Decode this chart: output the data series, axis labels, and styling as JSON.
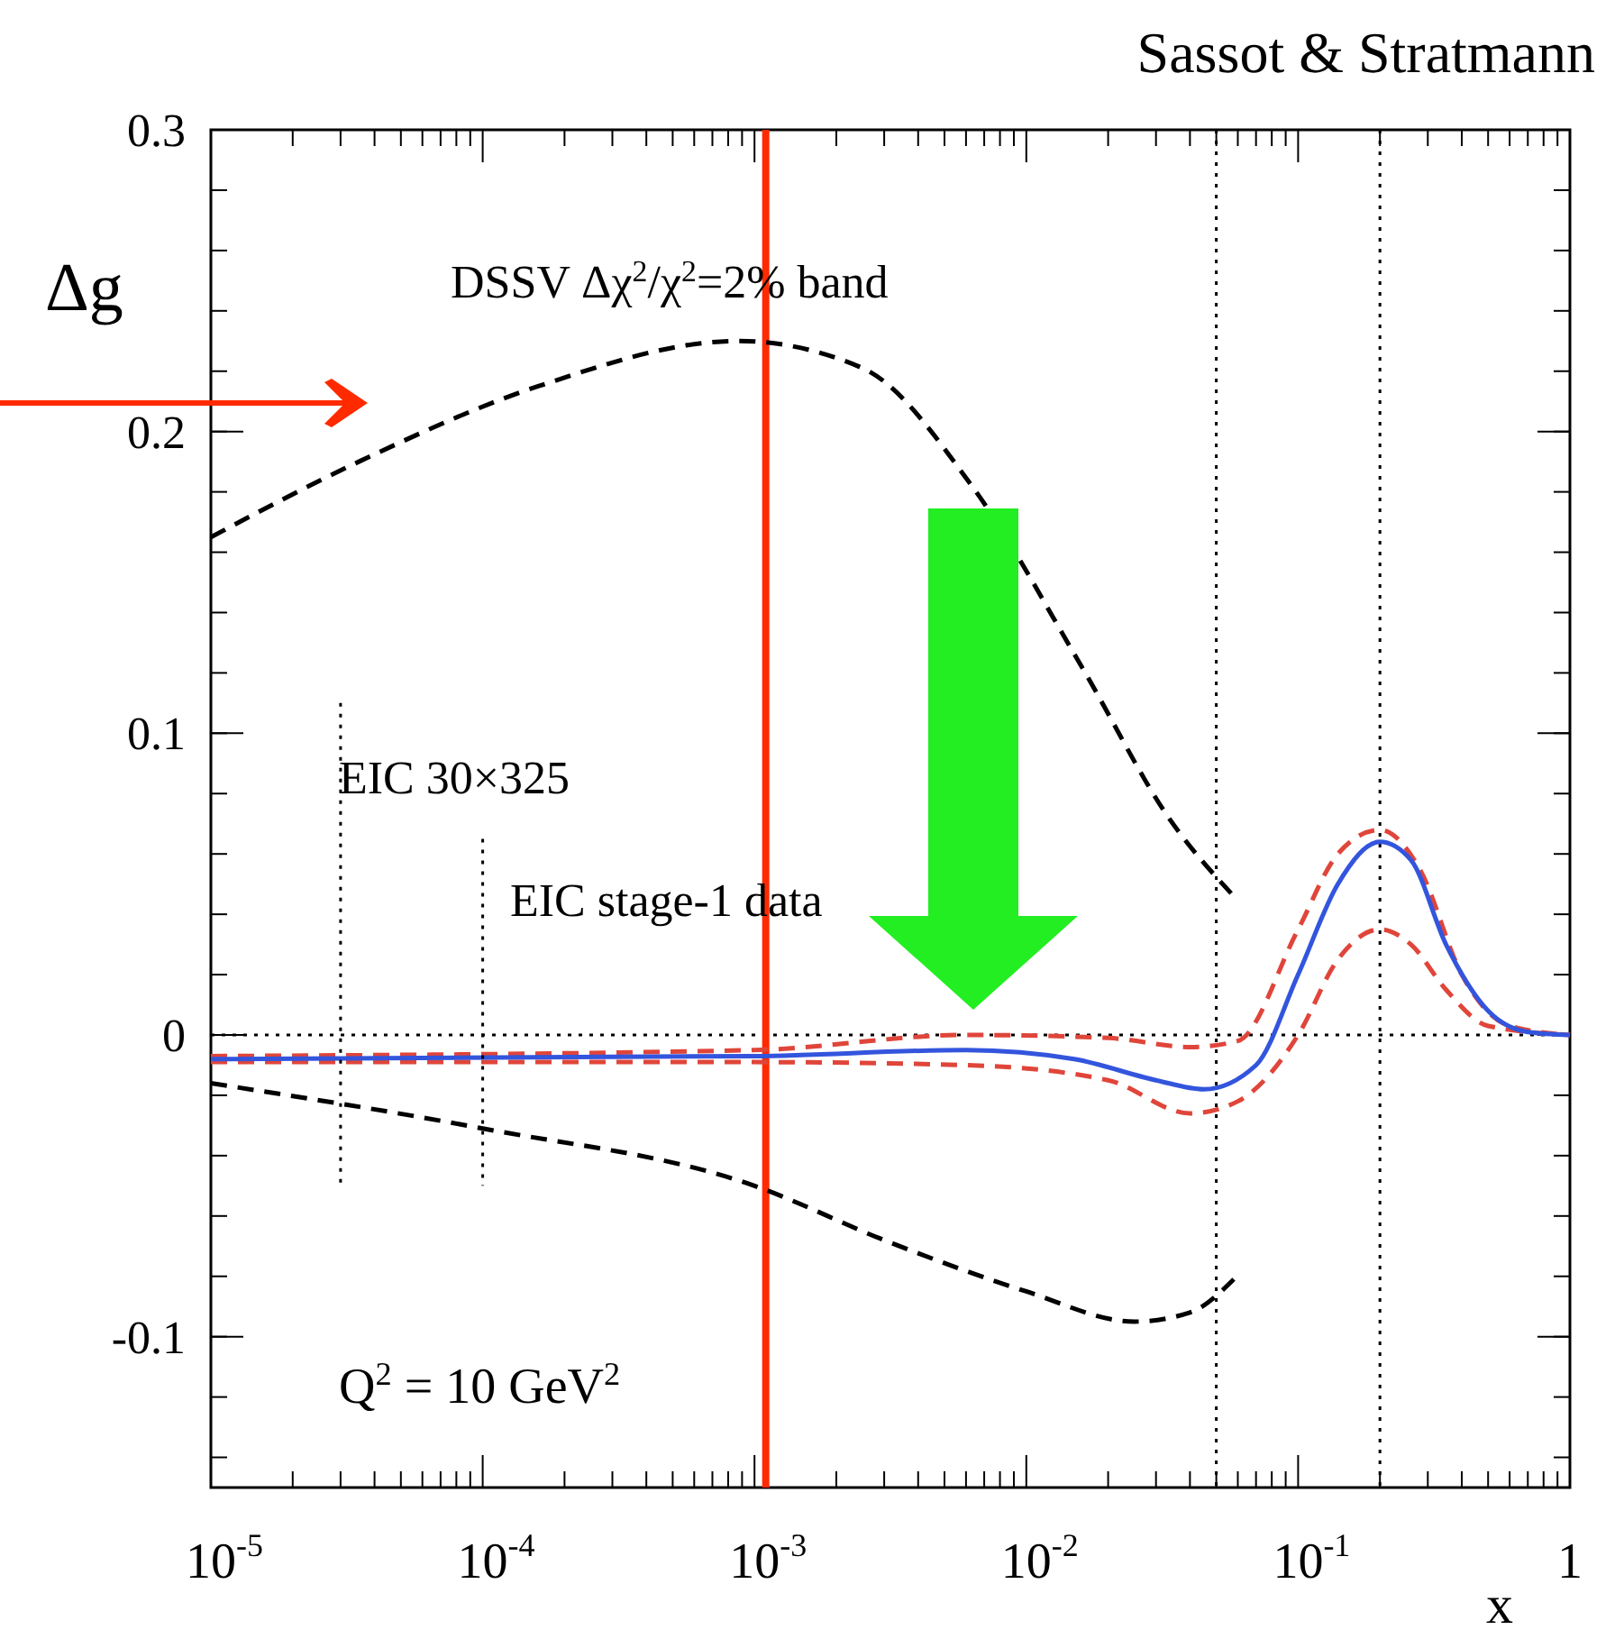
{
  "chart_data": {
    "type": "line",
    "xlabel": "x",
    "ylabel": "Δg",
    "log": "x",
    "xlim": [
      1e-05,
      1
    ],
    "ylim": [
      -0.15,
      0.3
    ],
    "xticks": [
      {
        "value": 1e-05,
        "label": "10$^{-5}$"
      },
      {
        "value": 0.0001,
        "label": "10$^{-4}$"
      },
      {
        "value": 0.001,
        "label": "10$^{-3}$"
      },
      {
        "value": 0.01,
        "label": "10$^{-2}$"
      },
      {
        "value": 0.1,
        "label": "10$^{-1}$"
      },
      1
    ],
    "yticks": [
      -0.1,
      0,
      0.1,
      0.2,
      0.3
    ],
    "series": [
      {
        "color": "#000000",
        "line_style": "dashed",
        "x": [
          1e-05,
          3.5e-05,
          0.00016,
          0.00087,
          0.0025,
          0.0063,
          0.016,
          0.034,
          0.058
        ],
        "values": [
          0.165,
          0.19,
          0.215,
          0.23,
          0.221,
          0.182,
          0.122,
          0.071,
          0.046
        ]
      },
      {
        "color": "#000000",
        "line_style": "dashed",
        "x": [
          1e-05,
          0.0001,
          0.001,
          0.003,
          0.01,
          0.025,
          0.04,
          0.058
        ],
        "values": [
          -0.016,
          -0.031,
          -0.05,
          -0.068,
          -0.085,
          -0.095,
          -0.092,
          -0.081
        ]
      },
      {
        "color": "#e0453a",
        "line_style": "dashed",
        "x": [
          1e-05,
          0.001,
          0.006,
          0.02,
          0.04,
          0.06,
          0.1,
          0.14,
          0.2,
          0.28,
          0.4,
          0.6,
          1
        ],
        "values": [
          -0.007,
          -0.005,
          0,
          -0.001,
          -0.004,
          -0.002,
          0.035,
          0.06,
          0.068,
          0.055,
          0.02,
          0.003,
          0
        ]
      },
      {
        "color": "#e0453a",
        "line_style": "dashed",
        "x": [
          1e-05,
          0.001,
          0.006,
          0.02,
          0.04,
          0.06,
          0.1,
          0.14,
          0.2,
          0.26,
          0.35,
          0.5,
          1
        ],
        "values": [
          -0.009,
          -0.009,
          -0.01,
          -0.015,
          -0.026,
          -0.022,
          0,
          0.025,
          0.035,
          0.03,
          0.015,
          0.003,
          0
        ]
      },
      {
        "color": "#3355dd",
        "line_style": "solid",
        "x": [
          1e-05,
          0.001,
          0.006,
          0.015,
          0.03,
          0.045,
          0.07,
          0.1,
          0.14,
          0.2,
          0.26,
          0.35,
          0.5,
          0.7,
          1
        ],
        "values": [
          -0.008,
          -0.007,
          -0.005,
          -0.008,
          -0.015,
          -0.018,
          -0.01,
          0.02,
          0.05,
          0.064,
          0.058,
          0.03,
          0.008,
          0.001,
          0
        ]
      },
      {
        "color": "#000000",
        "line_style": "dotted",
        "x": [
          3e-05,
          3e-05
        ],
        "values": [
          0.11,
          -0.05
        ]
      },
      {
        "color": "#000000",
        "line_style": "dotted",
        "x": [
          0.0001,
          0.0001
        ],
        "values": [
          0.065,
          -0.05
        ]
      }
    ],
    "ref_lines": [
      {
        "axis": "y",
        "value": 0,
        "color": "#000000",
        "line_style": "dotted"
      },
      {
        "axis": "x",
        "value": 0.05,
        "color": "#000000",
        "line_style": "dotted"
      },
      {
        "axis": "x",
        "value": 0.2,
        "color": "#000000",
        "line_style": "dotted"
      },
      {
        "axis": "x",
        "value": 0.0011,
        "color": "#ff2a00",
        "line_style": "solid"
      }
    ],
    "annotations": [
      "Sassot & Stratmann",
      "DSSV Δχ$^{2}$/χ$^{2}$=2% band",
      "EIC 30×325",
      "EIC stage-1 data",
      "Q$^{2}$ = 10 GeV$^{2}$"
    ]
  }
}
